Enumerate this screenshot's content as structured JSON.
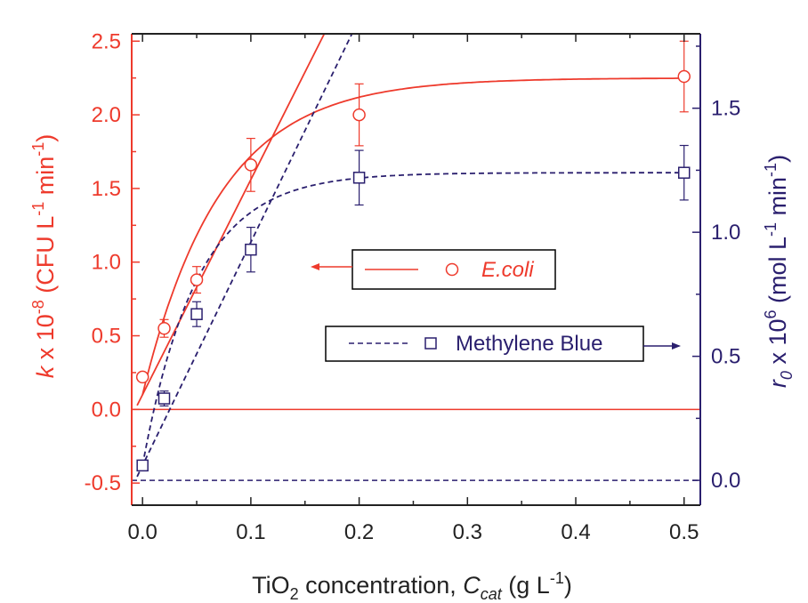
{
  "chart_data": {
    "type": "scatter",
    "xlabel": {
      "main": "TiO",
      "sub1": "2",
      "mid": " concentration, ",
      "var": "C",
      "sub2": "cat",
      "unit": " (g L",
      "sup": "-1",
      "close": ")"
    },
    "ylabel_left": {
      "var": "k",
      "pre": " x 10",
      "exp": "-8",
      "mid": " (CFU L",
      "sup1": "-1",
      "mid2": " min",
      "sup2": "-1",
      "close": ")"
    },
    "ylabel_right": {
      "var": "r",
      "sub": "0",
      "pre": " x 10",
      "exp": "6",
      "mid": " (mol L",
      "sup1": "-1",
      "mid2": " min",
      "sup2": "-1",
      "close": ")"
    },
    "xlim": [
      -0.01,
      0.515
    ],
    "ylim_left": [
      -0.65,
      2.55
    ],
    "ylim_right": [
      -0.1,
      1.8
    ],
    "x_ticks": [
      "0.0",
      "0.1",
      "0.2",
      "0.3",
      "0.4",
      "0.5"
    ],
    "y_left_ticks": [
      "-0.5",
      "0.0",
      "0.5",
      "1.0",
      "1.5",
      "2.0",
      "2.5"
    ],
    "y_right_ticks": [
      "0.0",
      "0.5",
      "1.0",
      "1.5"
    ],
    "series": [
      {
        "name": "E.coli",
        "axis": "left",
        "color": "#ee3a2c",
        "marker": "circle",
        "line_style": "solid",
        "x": [
          0.0,
          0.02,
          0.05,
          0.1,
          0.2,
          0.5
        ],
        "y": [
          0.22,
          0.55,
          0.88,
          1.66,
          2.0,
          2.26
        ],
        "err": [
          0.0,
          0.06,
          0.09,
          0.18,
          0.21,
          0.24
        ],
        "fit_plateau": 2.25,
        "fit_intercept": 0.1,
        "fit_rate": 14.0,
        "tangent_intercept": 0.1,
        "tangent_slope": 14.6,
        "baseline": 0.0
      },
      {
        "name": "Methylene Blue",
        "axis": "right",
        "color": "#2a1f6e",
        "marker": "square",
        "line_style": "dashed",
        "x": [
          0.0,
          0.02,
          0.05,
          0.1,
          0.2,
          0.5
        ],
        "y": [
          0.06,
          0.33,
          0.67,
          0.93,
          1.22,
          1.24
        ],
        "err": [
          0.0,
          0.03,
          0.05,
          0.09,
          0.11,
          0.11
        ],
        "fit_plateau": 1.24,
        "fit_intercept": 0.06,
        "fit_rate": 20.0,
        "tangent_intercept": 0.06,
        "tangent_slope": 9.0,
        "baseline": 0.0
      }
    ],
    "legend": {
      "placement": "center-right",
      "arrow_ecoli": "left",
      "arrow_mb": "right"
    }
  }
}
